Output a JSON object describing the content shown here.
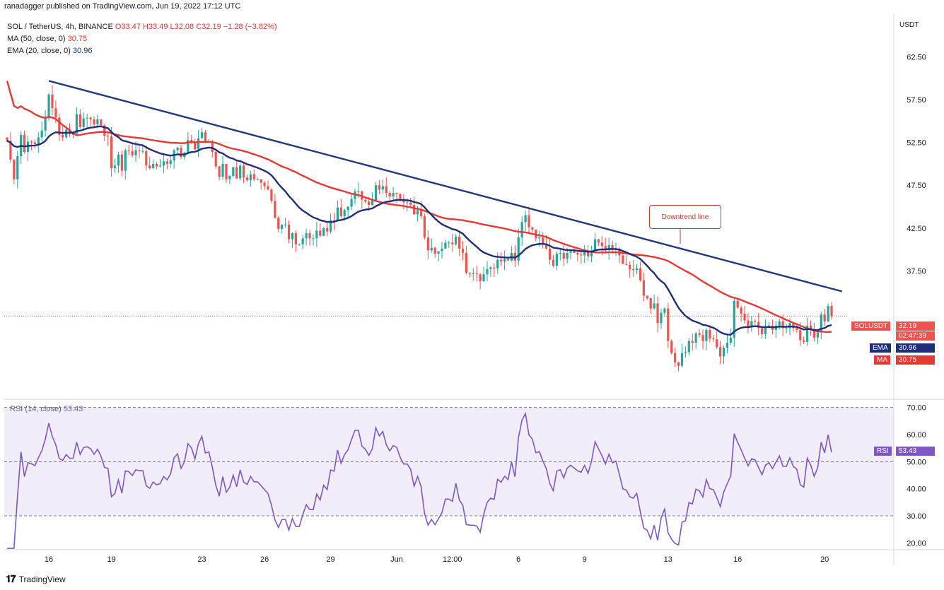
{
  "header": {
    "publisher": "ranadagger published on TradingView.com, Jun 19, 2022 17:12 UTC"
  },
  "legend": {
    "symbol": "SOL / TetherUS, 4h, BINANCE",
    "ohlc": "O33.47 H33.49 L32.08 C32.19 −1.28 (−3.82%)",
    "ma_label": "MA (50, close, 0)",
    "ma_value": "30.75",
    "ema_label": "EMA (20, close, 0)",
    "ema_value": "30.96"
  },
  "rsi_legend": {
    "label": "RSI (14, close)",
    "value": "53.43"
  },
  "currency": "USDT",
  "annotation": {
    "text": "Downtrend line"
  },
  "tags": {
    "symbol_tag": "SOLUSDT",
    "price": "32.19",
    "countdown": "02:47:39",
    "ema_tag": "EMA",
    "ema_val": "30.96",
    "ma_tag": "MA",
    "ma_val": "30.75",
    "rsi_tag": "RSI",
    "rsi_val": "53.43"
  },
  "footer": {
    "brand": "TradingView"
  },
  "colors": {
    "up": "#26a69a",
    "down": "#ef5350",
    "ma": "#e53935",
    "ema": "#1e2e7a",
    "trend": "#1e3a7a",
    "rsi": "#7e57c2"
  },
  "chart_data": [
    {
      "type": "candlestick",
      "title": "SOL / TetherUS, 4h, BINANCE",
      "ylabel": "USDT",
      "ylim": [
        22.5,
        67.5
      ],
      "y_ticks": [
        "62.50",
        "57.50",
        "52.50",
        "47.50",
        "42.50",
        "37.50"
      ],
      "x_ticks": [
        "16",
        "19",
        "23",
        "26",
        "29",
        "Jun",
        "12:00",
        "6",
        "9",
        "13",
        "16",
        "20"
      ],
      "x_tick_index": [
        12,
        30,
        56,
        74,
        93,
        112,
        128,
        147,
        166,
        190,
        210,
        235
      ],
      "close": [
        52.7,
        50.5,
        48.2,
        50.9,
        53.4,
        51.4,
        52.6,
        52.5,
        52.3,
        53.1,
        53.9,
        55.4,
        58.1,
        56.5,
        55.4,
        53.4,
        53.1,
        54.0,
        53.5,
        53.5,
        55.8,
        54.3,
        55.3,
        55.4,
        55.2,
        54.6,
        55.2,
        54.5,
        53.3,
        53.2,
        49.5,
        49.8,
        51.1,
        49.2,
        51.6,
        51.5,
        51.0,
        51.6,
        51.5,
        51.5,
        49.8,
        49.5,
        50.0,
        49.7,
        49.8,
        50.3,
        50.0,
        50.4,
        51.6,
        51.9,
        50.8,
        51.3,
        52.8,
        52.5,
        51.7,
        53.0,
        53.7,
        52.5,
        52.6,
        51.4,
        49.7,
        48.5,
        50.0,
        48.2,
        48.6,
        49.6,
        48.3,
        49.8,
        48.4,
        48.1,
        48.8,
        48.2,
        48.2,
        47.8,
        47.4,
        47.0,
        45.7,
        43.7,
        42.4,
        42.9,
        42.9,
        41.2,
        41.9,
        40.6,
        40.6,
        41.3,
        41.9,
        41.3,
        41.3,
        42.2,
        41.6,
        42.5,
        42.1,
        43.4,
        43.3,
        44.9,
        43.9,
        44.6,
        45.0,
        45.9,
        46.8,
        46.8,
        45.8,
        45.6,
        45.2,
        45.7,
        47.5,
        47.0,
        47.4,
        46.6,
        46.2,
        46.6,
        46.5,
        45.9,
        45.5,
        45.5,
        45.2,
        44.1,
        44.6,
        43.9,
        41.4,
        39.9,
        40.2,
        39.5,
        39.8,
        40.1,
        40.8,
        40.8,
        40.6,
        41.5,
        40.1,
        39.6,
        37.3,
        37.2,
        37.2,
        37.1,
        36.3,
        37.1,
        37.7,
        37.9,
        37.8,
        38.8,
        38.6,
        38.9,
        38.7,
        39.6,
        38.7,
        41.4,
        43.2,
        44.0,
        42.6,
        42.3,
        41.3,
        41.4,
        40.7,
        40.1,
        38.8,
        38.1,
        39.5,
        39.6,
        38.9,
        39.6,
        39.8,
        39.6,
        39.4,
        39.3,
        39.7,
        39.2,
        39.9,
        41.2,
        40.8,
        40.4,
        39.9,
        40.5,
        40.0,
        40.1,
        39.3,
        38.3,
        38.2,
        37.7,
        37.6,
        37.8,
        36.4,
        34.6,
        34.3,
        33.1,
        33.7,
        31.4,
        32.6,
        33.1,
        29.3,
        27.9,
        26.8,
        26.4,
        27.9,
        28.0,
        29.3,
        29.1,
        30.2,
        30.0,
        29.3,
        30.6,
        29.6,
        29.5,
        28.6,
        27.5,
        28.5,
        29.1,
        29.7,
        34.0,
        33.2,
        32.5,
        31.7,
        30.9,
        31.6,
        31.5,
        30.8,
        30.1,
        30.9,
        31.1,
        30.6,
        31.1,
        31.6,
        30.8,
        30.8,
        31.4,
        30.8,
        30.6,
        29.4,
        29.2,
        31.1,
        30.6,
        29.7,
        30.3,
        32.4,
        31.6,
        33.4,
        32.2
      ],
      "trend_line": [
        {
          "x_index": 12,
          "y": 59.7
        },
        {
          "x_index": 240,
          "y": 35.1
        }
      ],
      "last_price": 32.19,
      "series": [
        {
          "name": "MA (50, close, 0)",
          "last": 30.75
        },
        {
          "name": "EMA (20, close, 0)",
          "last": 30.96
        }
      ]
    },
    {
      "type": "line",
      "title": "RSI (14, close)",
      "ylim": [
        17.5,
        72.5
      ],
      "y_ticks": [
        "70.00",
        "60.00",
        "50.00",
        "40.00",
        "30.00",
        "20.00"
      ],
      "bands": [
        70,
        50,
        30
      ],
      "last": 53.43
    }
  ]
}
